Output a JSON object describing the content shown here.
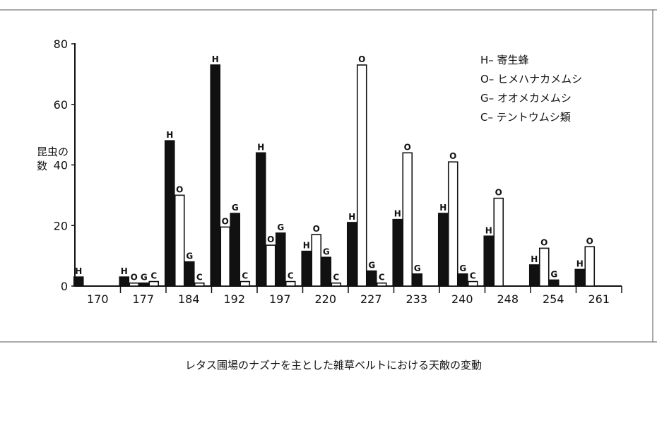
{
  "chart_data": {
    "type": "bar",
    "categories": [
      "170",
      "177",
      "184",
      "192",
      "197",
      "220",
      "227",
      "233",
      "240",
      "248",
      "254",
      "261"
    ],
    "series": [
      {
        "name": "H",
        "label": "寄生蜂",
        "style": "solid",
        "values": [
          3,
          3,
          48,
          73,
          44,
          11.5,
          21,
          22,
          24,
          16.5,
          7,
          5.5
        ]
      },
      {
        "name": "O",
        "label": "ヒメハナカメムシ",
        "style": "outline",
        "values": [
          null,
          1,
          30,
          19.5,
          13.5,
          17,
          73,
          44,
          41,
          29,
          12.5,
          13
        ]
      },
      {
        "name": "G",
        "label": "オオメカメムシ",
        "style": "solid",
        "values": [
          null,
          1,
          8,
          24,
          17.5,
          9.5,
          5,
          4,
          4,
          null,
          2,
          null
        ]
      },
      {
        "name": "C",
        "label": "テントウムシ類",
        "style": "outline",
        "values": [
          null,
          1.5,
          1,
          1.5,
          1.5,
          1,
          1,
          null,
          1.5,
          null,
          null,
          null
        ]
      }
    ],
    "ylabel": "昆虫の数",
    "xlabel": "",
    "ylim": [
      0,
      80
    ],
    "yticks": [
      0,
      20,
      40,
      60,
      80
    ],
    "legend": {
      "position": "top-right",
      "entries": [
        "H– 寄生蜂",
        "O– ヒメハナカメムシ",
        "G– オオメカメムシ",
        "C– テントウムシ類"
      ]
    },
    "grid": false
  },
  "caption": "レタス圃場のナズナを主とした雑草ベルトにおける天敵の変動",
  "colors": {
    "ink": "#111111",
    "paper": "#ffffff",
    "frame": "#555555"
  }
}
